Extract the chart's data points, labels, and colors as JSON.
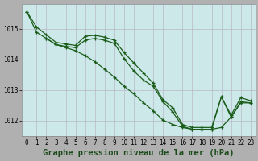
{
  "title": "Graphe pression niveau de la mer (hPa)",
  "bg_color": "#cce8e8",
  "grid_color": "#b8b8c8",
  "line_color": "#1a5c1a",
  "marker_color": "#1a5c1a",
  "xlim": [
    -0.5,
    23.5
  ],
  "ylim": [
    1011.5,
    1015.8
  ],
  "yticks": [
    1012,
    1013,
    1014,
    1015
  ],
  "xticks": [
    0,
    1,
    2,
    3,
    4,
    5,
    6,
    7,
    8,
    9,
    10,
    11,
    12,
    13,
    14,
    15,
    16,
    17,
    18,
    19,
    20,
    21,
    22,
    23
  ],
  "line1": {
    "x": [
      0,
      1,
      2,
      3,
      4,
      5,
      6,
      7,
      8,
      9,
      10,
      11,
      12,
      13,
      14,
      15,
      16,
      17,
      18,
      19,
      20,
      21,
      22,
      23
    ],
    "y": [
      1015.55,
      1015.05,
      1014.8,
      1014.55,
      1014.5,
      1014.45,
      1014.75,
      1014.78,
      1014.72,
      1014.62,
      1014.22,
      1013.88,
      1013.55,
      1013.22,
      1012.68,
      1012.42,
      1011.88,
      1011.78,
      1011.78,
      1011.78,
      1012.78,
      1012.18,
      1012.75,
      1012.65
    ]
  },
  "line2": {
    "x": [
      0,
      1,
      2,
      3,
      4,
      5,
      6,
      7,
      8,
      9,
      10,
      11,
      12,
      13,
      14,
      15,
      16,
      17,
      18,
      19,
      20,
      21,
      22,
      23
    ],
    "y": [
      1015.55,
      1014.88,
      1014.68,
      1014.48,
      1014.42,
      1014.38,
      1014.62,
      1014.68,
      1014.62,
      1014.52,
      1014.02,
      1013.62,
      1013.32,
      1013.12,
      1012.62,
      1012.28,
      1011.82,
      1011.72,
      1011.72,
      1011.72,
      1012.78,
      1012.12,
      1012.62,
      1012.58
    ]
  },
  "line3": {
    "x": [
      2,
      3,
      4,
      5,
      6,
      7,
      8,
      9,
      10,
      11,
      12,
      13,
      14,
      15,
      16,
      17,
      18,
      19,
      20,
      21,
      22,
      23
    ],
    "y": [
      1014.68,
      1014.48,
      1014.38,
      1014.28,
      1014.12,
      1013.92,
      1013.68,
      1013.42,
      1013.12,
      1012.88,
      1012.58,
      1012.32,
      1012.02,
      1011.88,
      1011.78,
      1011.72,
      1011.72,
      1011.72,
      1011.78,
      1012.12,
      1012.58,
      1012.58
    ]
  },
  "title_fontsize": 7.5,
  "tick_fontsize": 5.5,
  "fig_bg": "#b0b0b0"
}
